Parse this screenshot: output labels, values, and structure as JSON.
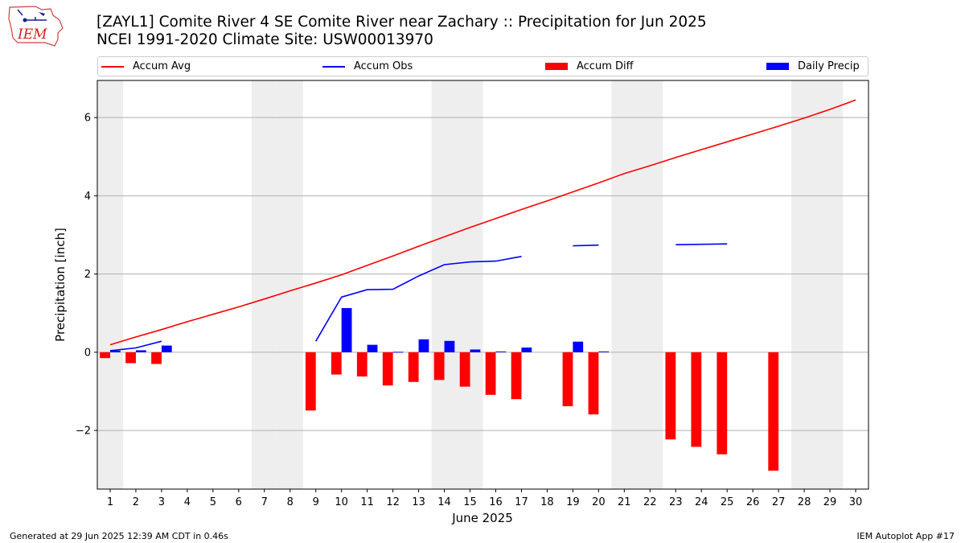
{
  "header": {
    "title_line1": "[ZAYL1] Comite River 4 SE Comite River near Zachary :: Precipitation for Jun 2025",
    "title_line2": "NCEI 1991-2020 Climate Site: USW00013970",
    "logo_text": "IEM"
  },
  "footer": {
    "generated": "Generated at 29 Jun 2025 12:39 AM CDT in 0.46s",
    "app": "IEM Autoplot App #17"
  },
  "colors": {
    "accum_avg": "#ff0000",
    "accum_obs": "#0000ff",
    "accum_diff": "#ff0000",
    "daily_precip": "#0000ff",
    "weekend": "#eeeeee",
    "grid": "#b0b0b0"
  },
  "chart_data": {
    "type": "bar",
    "xlabel": "June 2025",
    "ylabel": "Precipitation [inch]",
    "xlim": [
      0.5,
      30.5
    ],
    "ylim": [
      -3.5,
      6.95
    ],
    "yticks": [
      -2,
      0,
      2,
      4,
      6
    ],
    "grid": true,
    "legend_position": "top",
    "x": [
      1,
      2,
      3,
      4,
      5,
      6,
      7,
      8,
      9,
      10,
      11,
      12,
      13,
      14,
      15,
      16,
      17,
      18,
      19,
      20,
      21,
      22,
      23,
      24,
      25,
      26,
      27,
      28,
      29,
      30
    ],
    "weekend_days": [
      1,
      7,
      8,
      14,
      15,
      21,
      22,
      28,
      29
    ],
    "series": [
      {
        "name": "Accum Avg",
        "kind": "line",
        "values": [
          0.19,
          0.39,
          0.58,
          0.78,
          0.97,
          1.16,
          1.36,
          1.57,
          1.77,
          1.98,
          2.22,
          2.46,
          2.71,
          2.95,
          3.19,
          3.42,
          3.65,
          3.87,
          4.1,
          4.33,
          4.57,
          4.77,
          4.98,
          5.18,
          5.38,
          5.58,
          5.78,
          5.99,
          6.21,
          6.45
        ]
      },
      {
        "name": "Accum Obs",
        "kind": "line",
        "values": [
          0.04,
          0.11,
          0.28,
          null,
          null,
          null,
          null,
          null,
          0.28,
          1.41,
          1.6,
          1.61,
          1.95,
          2.24,
          2.31,
          2.33,
          2.45,
          null,
          2.72,
          2.74,
          null,
          null,
          2.75,
          2.76,
          2.77,
          null,
          null,
          null,
          null,
          null
        ]
      },
      {
        "name": "Accum Diff",
        "kind": "bar",
        "values": [
          -0.15,
          -0.28,
          -0.3,
          null,
          null,
          null,
          null,
          null,
          -1.49,
          -0.57,
          -0.62,
          -0.85,
          -0.76,
          -0.71,
          -0.88,
          -1.09,
          -1.2,
          null,
          -1.38,
          -1.59,
          null,
          null,
          -2.23,
          -2.42,
          -2.61,
          null,
          -3.03,
          null,
          null,
          null
        ]
      },
      {
        "name": "Daily Precip",
        "kind": "bar",
        "values": [
          0.04,
          0.05,
          0.17,
          null,
          null,
          null,
          null,
          null,
          null,
          1.13,
          0.19,
          0.01,
          0.33,
          0.29,
          0.07,
          0.02,
          0.12,
          null,
          0.27,
          0.02,
          null,
          null,
          null,
          null,
          null,
          null,
          null,
          null,
          null,
          null
        ]
      }
    ]
  }
}
